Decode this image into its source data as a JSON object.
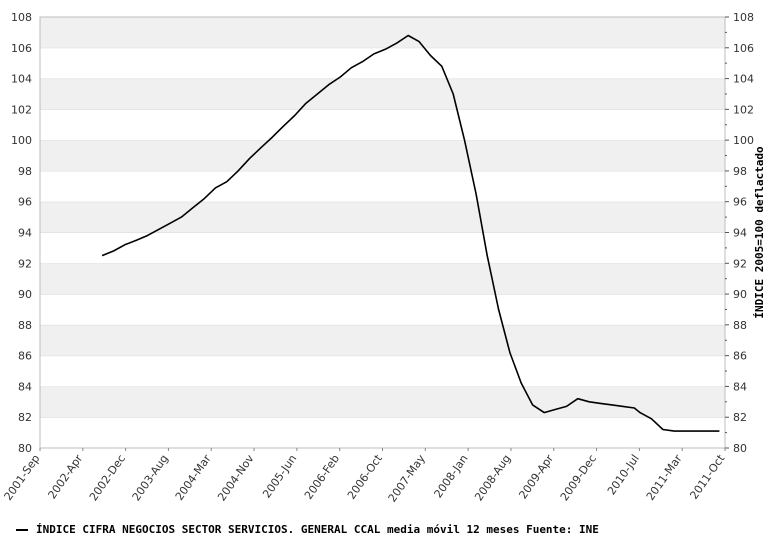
{
  "chart_data": {
    "type": "line",
    "title": "",
    "xlabel": "",
    "ylabel": "ÍNDICE 2005=100 deflactado",
    "ylim": [
      80,
      108
    ],
    "y_ticks": [
      80,
      82,
      84,
      86,
      88,
      90,
      92,
      94,
      96,
      98,
      100,
      102,
      104,
      106,
      108
    ],
    "x_tick_labels": [
      "2001-Sep",
      "2002-Apr",
      "2002-Dec",
      "2003-Aug",
      "2004-Mar",
      "2004-Nov",
      "2005-Jun",
      "2006-Feb",
      "2006-Oct",
      "2007-May",
      "2008-Jan",
      "2008-Aug",
      "2009-Apr",
      "2009-Dec",
      "2010-Jul",
      "2011-Mar",
      "2011-Oct"
    ],
    "grid": "horizontal alternating bands",
    "legend_position": "bottom",
    "legend": "ÍNDICE CIFRA NEGOCIOS SECTOR SERVICIOS. GENERAL CCAL media móvil 12 meses  Fuente: INE",
    "series": [
      {
        "name": "ÍNDICE CIFRA NEGOCIOS SECTOR SERVICIOS. GENERAL CCAL media móvil 12 meses",
        "color": "#000000",
        "x": [
          "2002-08",
          "2002-10",
          "2002-12",
          "2003-02",
          "2003-04",
          "2003-06",
          "2003-08",
          "2003-10",
          "2003-12",
          "2004-02",
          "2004-04",
          "2004-06",
          "2004-08",
          "2004-10",
          "2004-12",
          "2005-02",
          "2005-04",
          "2005-06",
          "2005-08",
          "2005-10",
          "2005-12",
          "2006-02",
          "2006-04",
          "2006-06",
          "2006-08",
          "2006-10",
          "2006-12",
          "2007-02",
          "2007-04",
          "2007-06",
          "2007-08",
          "2007-10",
          "2007-12",
          "2008-02",
          "2008-04",
          "2008-06",
          "2008-08",
          "2008-10",
          "2008-12",
          "2009-02",
          "2009-04",
          "2009-06",
          "2009-08",
          "2009-10",
          "2009-12",
          "2010-02",
          "2010-04",
          "2010-06",
          "2010-07",
          "2010-09",
          "2010-11",
          "2011-01",
          "2011-03",
          "2011-05",
          "2011-07",
          "2011-09"
        ],
        "values": [
          92.5,
          92.8,
          93.2,
          93.5,
          93.8,
          94.2,
          94.6,
          95.0,
          95.6,
          96.2,
          96.9,
          97.3,
          98.0,
          98.8,
          99.5,
          100.2,
          100.9,
          101.6,
          102.4,
          103.0,
          103.6,
          104.1,
          104.7,
          105.1,
          105.6,
          105.9,
          106.3,
          106.8,
          106.4,
          105.5,
          104.8,
          103.0,
          100.0,
          96.5,
          92.5,
          89.0,
          86.2,
          84.2,
          82.8,
          82.3,
          82.5,
          82.7,
          83.2,
          83.0,
          82.9,
          82.8,
          82.7,
          82.6,
          82.3,
          81.9,
          81.2,
          81.1,
          81.1,
          81.1,
          81.1,
          81.1
        ]
      }
    ]
  }
}
